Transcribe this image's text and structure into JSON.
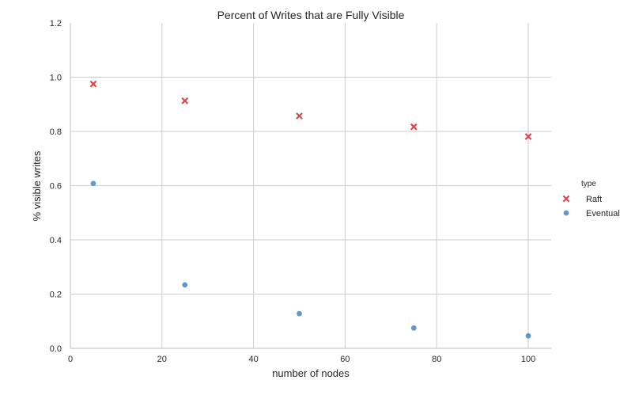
{
  "chart_data": {
    "type": "scatter",
    "title": "Percent of Writes that are Fully Visible",
    "xlabel": "number of nodes",
    "ylabel": "% visible writes",
    "xlim": [
      0,
      105
    ],
    "ylim": [
      0.0,
      1.2
    ],
    "x_ticks": [
      "0",
      "20",
      "40",
      "60",
      "80",
      "100"
    ],
    "y_ticks": [
      "0.0",
      "0.2",
      "0.4",
      "0.6",
      "0.8",
      "1.0",
      "1.2"
    ],
    "grid": true,
    "legend": {
      "title": "type",
      "position": "right"
    },
    "series": [
      {
        "name": "Raft",
        "marker": "x",
        "color": "#e0454a",
        "x": [
          5,
          25,
          50,
          75,
          100
        ],
        "y": [
          0.975,
          0.913,
          0.857,
          0.817,
          0.781
        ]
      },
      {
        "name": "Eventual",
        "marker": "circle",
        "color": "#5b93c5",
        "x": [
          5,
          25,
          50,
          75,
          100
        ],
        "y": [
          0.608,
          0.234,
          0.128,
          0.075,
          0.046
        ]
      }
    ]
  }
}
